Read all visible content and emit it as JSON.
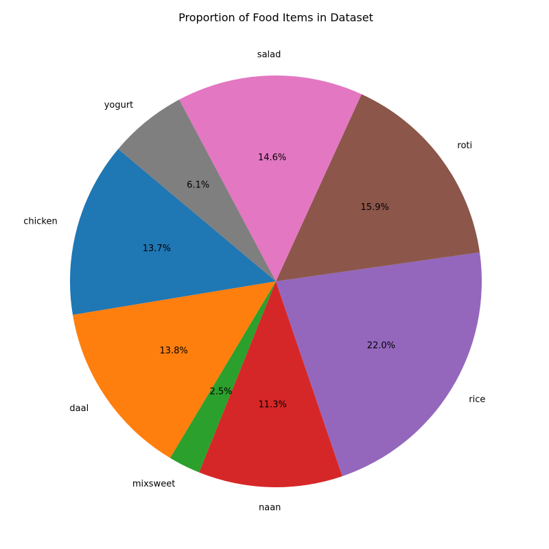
{
  "chart_data": {
    "type": "pie",
    "title": "Proportion of Food Items in Dataset",
    "start_angle_deg": 140,
    "direction": "counterclockwise",
    "slices": [
      {
        "label": "chicken",
        "value": 13.7,
        "pct_text": "13.7%",
        "color": "#1f77b4"
      },
      {
        "label": "daal",
        "value": 13.8,
        "pct_text": "13.8%",
        "color": "#ff7f0e"
      },
      {
        "label": "mixsweet",
        "value": 2.5,
        "pct_text": "2.5%",
        "color": "#2ca02c"
      },
      {
        "label": "naan",
        "value": 11.3,
        "pct_text": "11.3%",
        "color": "#d62728"
      },
      {
        "label": "rice",
        "value": 22.0,
        "pct_text": "22.0%",
        "color": "#9467bd"
      },
      {
        "label": "roti",
        "value": 15.9,
        "pct_text": "15.9%",
        "color": "#8c564b"
      },
      {
        "label": "salad",
        "value": 14.6,
        "pct_text": "14.6%",
        "color": "#e377c2"
      },
      {
        "label": "yogurt",
        "value": 6.1,
        "pct_text": "6.1%",
        "color": "#7f7f7f"
      }
    ]
  }
}
